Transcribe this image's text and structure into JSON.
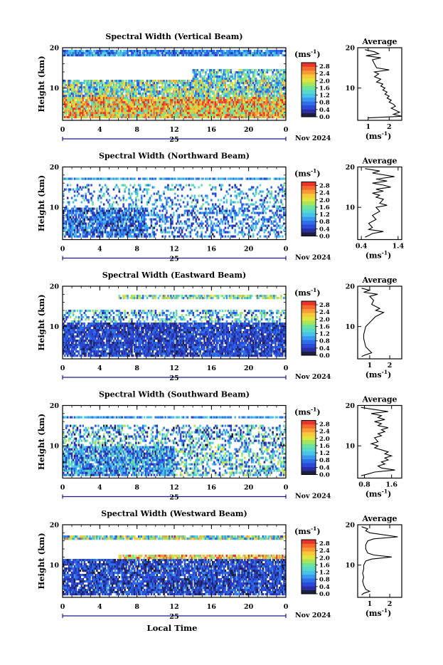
{
  "figure": {
    "xlabel": "Local Time",
    "ylabel": "Height (km)",
    "unit_label": "(ms",
    "unit_exp": "-1",
    "unit_close": ")",
    "avg_title": "Average",
    "avg_unit": "(ms",
    "date_day": "25",
    "date_month": "Nov 2024"
  },
  "colors": {
    "scale": [
      "#1d1f3e",
      "#2a2fa6",
      "#2b4ad8",
      "#2e6fe9",
      "#3a99ee",
      "#48c2ea",
      "#56d9c8",
      "#6ee39a",
      "#a6e55c",
      "#dfe53c",
      "#f6c83a",
      "#f89a36",
      "#f46a2e",
      "#e8342a"
    ]
  },
  "chart_data": [
    {
      "type": "heatmap",
      "title": "Spectral Width (Vertical Beam)",
      "x": {
        "range": [
          0,
          24
        ],
        "ticks": [
          "0",
          "4",
          "8",
          "12",
          "16",
          "20",
          "0"
        ]
      },
      "y": {
        "range": [
          2,
          20
        ],
        "ticks": [
          "20",
          "10"
        ]
      },
      "colorbar": {
        "range": [
          0,
          3.0
        ],
        "ticks": [
          "2.8",
          "2.4",
          "2.0",
          "1.6",
          "1.2",
          "0.8",
          "0.4",
          "0.0"
        ]
      },
      "layers": [
        {
          "h": [
            17.7,
            19.3
          ],
          "t": [
            0,
            24
          ],
          "density": 0.9,
          "value": 0.9,
          "spread": 0.5
        },
        {
          "h": [
            12.0,
            14.5
          ],
          "t": [
            14,
            24
          ],
          "density": 0.7,
          "value": 1.3,
          "spread": 0.7
        },
        {
          "h": [
            8.0,
            12.0
          ],
          "t": [
            0,
            24
          ],
          "density": 0.85,
          "value": 1.5,
          "spread": 1.0
        },
        {
          "h": [
            2.5,
            8.0
          ],
          "t": [
            0,
            24
          ],
          "density": 0.97,
          "value": 2.2,
          "spread": 0.9
        }
      ],
      "avg": {
        "xlim": [
          0.5,
          2.6
        ],
        "xticks": [
          {
            "v": 1,
            "label": "1"
          },
          {
            "v": 2,
            "label": "2"
          }
        ],
        "yticks": [
          "20",
          "10"
        ],
        "profile": [
          [
            0.85,
            19.5
          ],
          [
            1.3,
            19.0
          ],
          [
            1.5,
            18.5
          ],
          [
            0.9,
            18.0
          ],
          [
            1.6,
            17.5
          ],
          [
            1.2,
            17.0
          ],
          [
            1.3,
            16.0
          ],
          [
            1.4,
            15.0
          ],
          [
            2.0,
            14.5
          ],
          [
            1.3,
            14.0
          ],
          [
            1.5,
            13.5
          ],
          [
            1.3,
            12.8
          ],
          [
            1.6,
            12.2
          ],
          [
            1.4,
            11.5
          ],
          [
            1.7,
            11.0
          ],
          [
            1.6,
            10.5
          ],
          [
            1.8,
            10.0
          ],
          [
            1.7,
            9.5
          ],
          [
            1.9,
            9.0
          ],
          [
            1.8,
            8.5
          ],
          [
            2.0,
            8.0
          ],
          [
            1.9,
            7.5
          ],
          [
            2.1,
            7.0
          ],
          [
            2.0,
            6.5
          ],
          [
            2.2,
            6.0
          ],
          [
            2.3,
            5.5
          ],
          [
            2.1,
            5.0
          ],
          [
            2.3,
            4.5
          ],
          [
            2.5,
            4.0
          ],
          [
            2.2,
            3.5
          ],
          [
            2.6,
            3.0
          ],
          [
            1.0,
            2.6
          ]
        ]
      }
    },
    {
      "type": "heatmap",
      "title": "Spectral Width (Northward Beam)",
      "x": {
        "range": [
          0,
          24
        ],
        "ticks": [
          "0",
          "4",
          "8",
          "12",
          "16",
          "20",
          "0"
        ]
      },
      "y": {
        "range": [
          2,
          20
        ],
        "ticks": [
          "20",
          "10"
        ]
      },
      "colorbar": {
        "range": [
          0,
          3.0
        ],
        "ticks": [
          "2.8",
          "2.4",
          "2.0",
          "1.6",
          "1.2",
          "0.8",
          "0.4",
          "0.0"
        ]
      },
      "layers": [
        {
          "h": [
            17.0,
            17.5
          ],
          "t": [
            0,
            24
          ],
          "density": 0.85,
          "value": 1.0,
          "spread": 0.4
        },
        {
          "h": [
            10.0,
            16.0
          ],
          "t": [
            0,
            24
          ],
          "density": 0.25,
          "value": 1.0,
          "spread": 0.7
        },
        {
          "h": [
            2.5,
            10.0
          ],
          "t": [
            0,
            9
          ],
          "density": 0.8,
          "value": 0.7,
          "spread": 0.6
        },
        {
          "h": [
            2.5,
            10.0
          ],
          "t": [
            9,
            24
          ],
          "density": 0.4,
          "value": 0.8,
          "spread": 0.6
        }
      ],
      "avg": {
        "xlim": [
          0.3,
          1.5
        ],
        "xticks": [
          {
            "v": 0.4,
            "label": "0.4"
          },
          {
            "v": 1.4,
            "label": "1.4"
          }
        ],
        "yticks": [
          "20",
          "10"
        ],
        "profile": [
          [
            0.5,
            19.6
          ],
          [
            0.9,
            19.0
          ],
          [
            0.7,
            18.5
          ],
          [
            1.3,
            17.6
          ],
          [
            0.8,
            17.0
          ],
          [
            1.1,
            16.5
          ],
          [
            0.7,
            16.0
          ],
          [
            1.0,
            15.5
          ],
          [
            1.2,
            15.0
          ],
          [
            0.8,
            14.5
          ],
          [
            1.0,
            14.0
          ],
          [
            0.7,
            13.5
          ],
          [
            0.9,
            13.0
          ],
          [
            0.8,
            12.5
          ],
          [
            1.0,
            12.0
          ],
          [
            0.9,
            11.0
          ],
          [
            1.1,
            10.5
          ],
          [
            0.8,
            10.0
          ],
          [
            0.9,
            9.0
          ],
          [
            0.7,
            8.0
          ],
          [
            0.8,
            7.0
          ],
          [
            0.6,
            6.0
          ],
          [
            0.7,
            5.0
          ],
          [
            0.6,
            4.5
          ],
          [
            1.0,
            4.0
          ],
          [
            0.7,
            3.5
          ],
          [
            0.6,
            3.0
          ],
          [
            0.5,
            2.6
          ]
        ]
      }
    },
    {
      "type": "heatmap",
      "title": "Spectral Width (Eastward Beam)",
      "x": {
        "range": [
          0,
          24
        ],
        "ticks": [
          "0",
          "4",
          "8",
          "12",
          "16",
          "20",
          "0"
        ]
      },
      "y": {
        "range": [
          2,
          20
        ],
        "ticks": [
          "20",
          "10"
        ]
      },
      "colorbar": {
        "range": [
          0,
          3.0
        ],
        "ticks": [
          "2.8",
          "2.4",
          "2.0",
          "1.6",
          "1.2",
          "0.8",
          "0.4",
          "0.0"
        ]
      },
      "layers": [
        {
          "h": [
            17.0,
            18.0
          ],
          "t": [
            6,
            24
          ],
          "density": 0.7,
          "value": 1.5,
          "spread": 0.8
        },
        {
          "h": [
            11.0,
            14.0
          ],
          "t": [
            0,
            24
          ],
          "density": 0.45,
          "value": 1.1,
          "spread": 0.8
        },
        {
          "h": [
            2.5,
            11.0
          ],
          "t": [
            0,
            24
          ],
          "density": 0.88,
          "value": 0.5,
          "spread": 0.35
        }
      ],
      "avg": {
        "xlim": [
          0.4,
          2.6
        ],
        "xticks": [
          {
            "v": 1,
            "label": "1"
          },
          {
            "v": 2,
            "label": "2"
          }
        ],
        "yticks": [
          "20",
          "10"
        ],
        "profile": [
          [
            0.6,
            19.5
          ],
          [
            1.0,
            19.0
          ],
          [
            0.7,
            18.5
          ],
          [
            1.4,
            18.0
          ],
          [
            1.0,
            17.5
          ],
          [
            1.2,
            16.5
          ],
          [
            1.1,
            15.5
          ],
          [
            1.5,
            14.5
          ],
          [
            1.3,
            14.0
          ],
          [
            1.7,
            13.5
          ],
          [
            1.5,
            13.0
          ],
          [
            1.3,
            12.5
          ],
          [
            1.2,
            12.0
          ],
          [
            1.0,
            11.0
          ],
          [
            0.8,
            10.0
          ],
          [
            0.75,
            9.0
          ],
          [
            0.7,
            8.0
          ],
          [
            0.7,
            7.0
          ],
          [
            0.75,
            6.0
          ],
          [
            0.8,
            5.0
          ],
          [
            1.0,
            4.0
          ],
          [
            1.1,
            3.5
          ],
          [
            0.8,
            3.0
          ],
          [
            0.6,
            2.6
          ]
        ]
      }
    },
    {
      "type": "heatmap",
      "title": "Spectral Width (Southward Beam)",
      "x": {
        "range": [
          0,
          24
        ],
        "ticks": [
          "0",
          "4",
          "8",
          "12",
          "16",
          "20",
          "0"
        ]
      },
      "y": {
        "range": [
          2,
          20
        ],
        "ticks": [
          "20",
          "10"
        ]
      },
      "colorbar": {
        "range": [
          0,
          3.0
        ],
        "ticks": [
          "2.8",
          "2.4",
          "2.0",
          "1.6",
          "1.2",
          "0.8",
          "0.4",
          "0.0"
        ]
      },
      "layers": [
        {
          "h": [
            17.0,
            17.6
          ],
          "t": [
            0,
            24
          ],
          "density": 0.8,
          "value": 1.0,
          "spread": 0.4
        },
        {
          "h": [
            10.0,
            15.0
          ],
          "t": [
            0,
            24
          ],
          "density": 0.4,
          "value": 1.0,
          "spread": 0.9
        },
        {
          "h": [
            2.5,
            10.0
          ],
          "t": [
            0,
            12
          ],
          "density": 0.85,
          "value": 0.9,
          "spread": 0.7
        },
        {
          "h": [
            2.5,
            10.0
          ],
          "t": [
            12,
            24
          ],
          "density": 0.45,
          "value": 1.2,
          "spread": 0.9
        }
      ],
      "avg": {
        "xlim": [
          0.6,
          1.9
        ],
        "xticks": [
          {
            "v": 0.8,
            "label": "0.8"
          },
          {
            "v": 1.6,
            "label": "1.6"
          }
        ],
        "yticks": [
          "20",
          "10"
        ],
        "profile": [
          [
            0.7,
            19.5
          ],
          [
            1.1,
            19.0
          ],
          [
            1.5,
            18.5
          ],
          [
            1.0,
            18.0
          ],
          [
            1.3,
            17.5
          ],
          [
            1.2,
            17.0
          ],
          [
            1.4,
            16.5
          ],
          [
            1.1,
            16.0
          ],
          [
            1.3,
            15.5
          ],
          [
            1.2,
            15.0
          ],
          [
            1.5,
            14.5
          ],
          [
            1.3,
            14.0
          ],
          [
            1.4,
            13.5
          ],
          [
            1.2,
            13.0
          ],
          [
            1.3,
            12.5
          ],
          [
            1.1,
            12.0
          ],
          [
            1.2,
            11.0
          ],
          [
            1.0,
            10.5
          ],
          [
            1.2,
            10.0
          ],
          [
            1.1,
            9.5
          ],
          [
            1.3,
            9.0
          ],
          [
            1.5,
            8.5
          ],
          [
            1.4,
            8.0
          ],
          [
            1.6,
            7.5
          ],
          [
            1.4,
            7.0
          ],
          [
            1.5,
            6.5
          ],
          [
            1.3,
            6.0
          ],
          [
            1.4,
            5.5
          ],
          [
            1.2,
            5.0
          ],
          [
            1.3,
            4.5
          ],
          [
            1.7,
            4.0
          ],
          [
            1.1,
            3.5
          ],
          [
            0.9,
            3.0
          ],
          [
            0.7,
            2.6
          ]
        ]
      }
    },
    {
      "type": "heatmap",
      "title": "Spectral Width (Westward Beam)",
      "x": {
        "range": [
          0,
          24
        ],
        "ticks": [
          "0",
          "4",
          "8",
          "12",
          "16",
          "20",
          "0"
        ]
      },
      "y": {
        "range": [
          2,
          20
        ],
        "ticks": [
          "20",
          "10"
        ]
      },
      "colorbar": {
        "range": [
          0,
          3.0
        ],
        "ticks": [
          "2.8",
          "2.4",
          "2.0",
          "1.6",
          "1.2",
          "0.8",
          "0.4",
          "0.0"
        ]
      },
      "layers": [
        {
          "h": [
            16.5,
            17.3
          ],
          "t": [
            0,
            24
          ],
          "density": 0.9,
          "value": 1.6,
          "spread": 1.0
        },
        {
          "h": [
            11.5,
            12.5
          ],
          "t": [
            6,
            24
          ],
          "density": 0.8,
          "value": 2.3,
          "spread": 0.7
        },
        {
          "h": [
            2.5,
            11.5
          ],
          "t": [
            0,
            24
          ],
          "density": 0.85,
          "value": 0.5,
          "spread": 0.4
        }
      ],
      "avg": {
        "xlim": [
          0.4,
          2.6
        ],
        "xticks": [
          {
            "v": 1,
            "label": "1"
          },
          {
            "v": 2,
            "label": "2"
          }
        ],
        "yticks": [
          "20",
          "10"
        ],
        "profile": [
          [
            0.6,
            19.5
          ],
          [
            0.9,
            19.0
          ],
          [
            0.8,
            18.5
          ],
          [
            1.0,
            18.0
          ],
          [
            2.4,
            17.0
          ],
          [
            1.2,
            16.5
          ],
          [
            0.9,
            16.0
          ],
          [
            0.8,
            15.0
          ],
          [
            0.8,
            14.0
          ],
          [
            0.9,
            13.0
          ],
          [
            1.2,
            12.5
          ],
          [
            2.1,
            12.0
          ],
          [
            1.1,
            11.5
          ],
          [
            0.8,
            11.0
          ],
          [
            0.7,
            10.0
          ],
          [
            0.7,
            9.0
          ],
          [
            0.65,
            8.0
          ],
          [
            0.7,
            7.0
          ],
          [
            0.65,
            6.0
          ],
          [
            0.7,
            5.0
          ],
          [
            0.8,
            4.0
          ],
          [
            1.0,
            3.5
          ],
          [
            0.7,
            3.0
          ],
          [
            0.6,
            2.6
          ]
        ]
      }
    }
  ]
}
